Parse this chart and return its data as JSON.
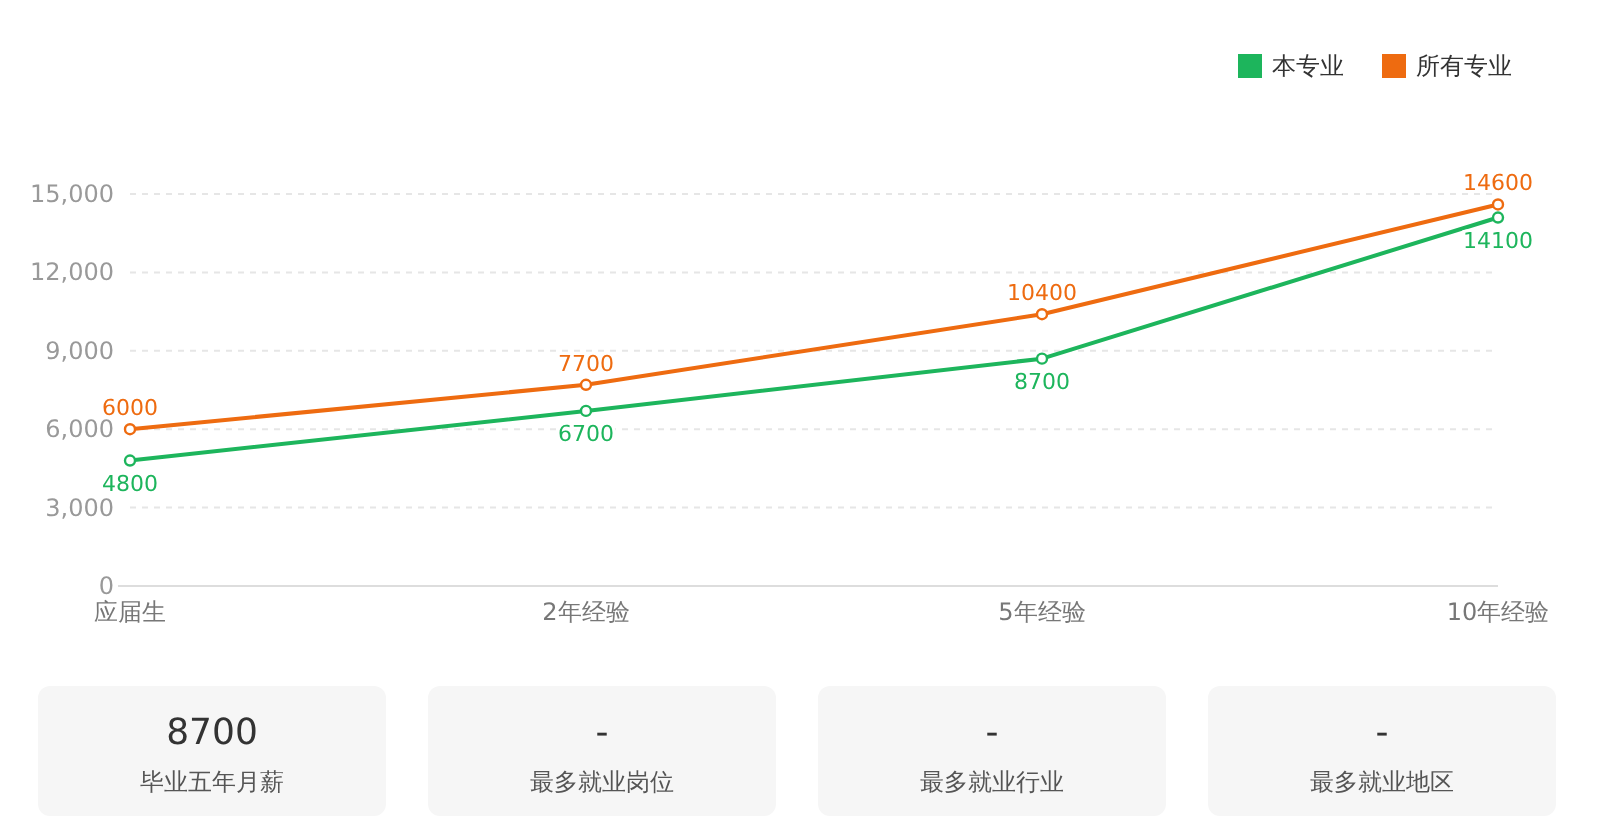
{
  "chart_data": [
    {
      "type": "line",
      "categories": [
        "应届生",
        "2年经验",
        "5年经验",
        "10年经验"
      ],
      "series": [
        {
          "name": "本专业",
          "color": "#1db55c",
          "values": [
            4800,
            6700,
            8700,
            14100
          ]
        },
        {
          "name": "所有专业",
          "color": "#ee6b10",
          "values": [
            6000,
            7700,
            10400,
            14600
          ]
        }
      ],
      "ylim": [
        0,
        15000
      ],
      "yticks": [
        0,
        {
          "value": 3000,
          "label": "3,000"
        },
        {
          "value": 6000,
          "label": "6,000"
        },
        {
          "value": 9000,
          "label": "9,000"
        },
        {
          "value": 12000,
          "label": "12,000"
        },
        {
          "value": 15000,
          "label": "15,000"
        }
      ],
      "data_labels": true,
      "legend": "top right",
      "grid": "y",
      "marker": "circle",
      "line_style": "solid"
    },
    {
      "type": "other",
      "annotations": [
        "8700",
        "毕业五年月薪",
        "-",
        "最多就业岗位",
        "-",
        "最多就业行业",
        "-",
        "最多就业地区"
      ]
    }
  ]
}
